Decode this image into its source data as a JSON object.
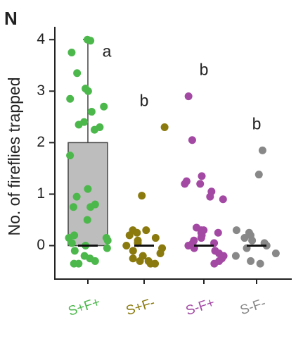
{
  "chart_data": {
    "type": "box",
    "panel_label": "N",
    "y_label": "No. of fireflies trapped",
    "ylim": [
      -0.65,
      4.25
    ],
    "yticks": [
      0,
      1,
      2,
      3,
      4
    ],
    "categories": [
      "S+F+",
      "S+F-",
      "S-F+",
      "S-F-"
    ],
    "series": [
      {
        "name": "S+F+",
        "color": "#4cb84c",
        "letter": "a",
        "box": {
          "low": 0,
          "q1": 0,
          "median": 0,
          "q3": 2,
          "high": 4
        },
        "values": [
          4.0,
          3.98,
          3.75,
          3.35,
          3.05,
          3.0,
          2.85,
          2.7,
          2.6,
          2.4,
          2.35,
          2.3,
          2.25,
          1.75,
          1.1,
          0.95,
          0.8,
          0.75,
          0.75,
          0.5,
          0.2,
          0.15,
          0.15,
          0.1,
          0.05,
          0.0,
          -0.05,
          -0.1,
          -0.2,
          -0.25,
          -0.3,
          -0.35,
          -0.35
        ]
      },
      {
        "name": "S+F-",
        "color": "#8b7a0e",
        "letter": "b",
        "box": {
          "low": 0,
          "q1": 0,
          "median": 0,
          "q3": 0,
          "high": 0
        },
        "values": [
          2.3,
          0.97,
          0.3,
          0.3,
          0.25,
          0.2,
          0.15,
          0.1,
          0.05,
          0.0,
          -0.05,
          -0.1,
          -0.15,
          -0.2,
          -0.25,
          -0.3,
          -0.3,
          -0.35,
          -0.35
        ]
      },
      {
        "name": "S-F+",
        "color": "#a349a4",
        "letter": "b",
        "box": {
          "low": 0,
          "q1": 0,
          "median": 0,
          "q3": 0,
          "high": 0
        },
        "values": [
          2.9,
          2.05,
          1.35,
          1.25,
          1.2,
          1.2,
          1.05,
          0.95,
          0.9,
          0.35,
          0.3,
          0.3,
          0.25,
          0.25,
          0.2,
          0.15,
          0.1,
          0.05,
          0.05,
          0.0,
          -0.05,
          -0.1,
          -0.15,
          -0.2,
          -0.25,
          -0.3,
          -0.35
        ]
      },
      {
        "name": "S-F-",
        "color": "#888888",
        "letter": "b",
        "box": {
          "low": 0,
          "q1": 0,
          "median": 0,
          "q3": 0,
          "high": 0
        },
        "values": [
          1.85,
          1.38,
          0.3,
          0.25,
          0.2,
          0.15,
          0.1,
          0.05,
          0.0,
          -0.05,
          -0.15,
          -0.2,
          -0.3,
          -0.35
        ]
      }
    ]
  }
}
